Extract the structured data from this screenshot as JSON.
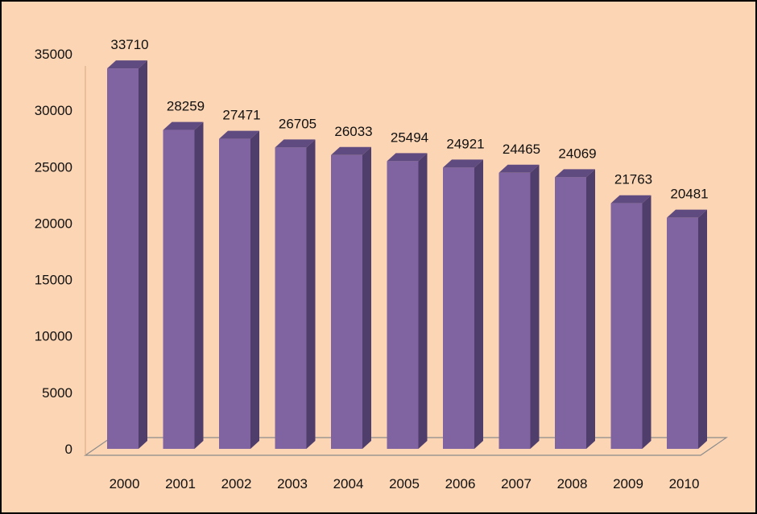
{
  "chart_data": {
    "type": "bar",
    "categories": [
      "2000",
      "2001",
      "2002",
      "2003",
      "2004",
      "2005",
      "2006",
      "2007",
      "2008",
      "2009",
      "2010"
    ],
    "series": [
      {
        "values": [
          33710,
          28259,
          27471,
          26705,
          26033,
          25494,
          24921,
          24465,
          24069,
          21763,
          20481
        ]
      }
    ],
    "ylim": [
      0,
      35000
    ],
    "yticks": [
      0,
      5000,
      10000,
      15000,
      20000,
      25000,
      30000,
      35000
    ],
    "ytick_labels": [
      "0",
      "5000",
      "10000",
      "15000",
      "20000",
      "25000",
      "30000",
      "35000"
    ],
    "value_labels": [
      "33710",
      "28259",
      "27471",
      "26705",
      "26033",
      "25494",
      "24921",
      "24465",
      "24069",
      "21763",
      "20481"
    ],
    "title": "",
    "xlabel": "",
    "ylabel": "",
    "grid": false,
    "legend": "none",
    "style": "3d-column",
    "colors": {
      "background": "#fcd5b4",
      "bar_front": "#8064a2",
      "bar_side": "#4f3d6b",
      "bar_top": "#5f4b80",
      "floor_line": "#8c8c8c"
    }
  }
}
